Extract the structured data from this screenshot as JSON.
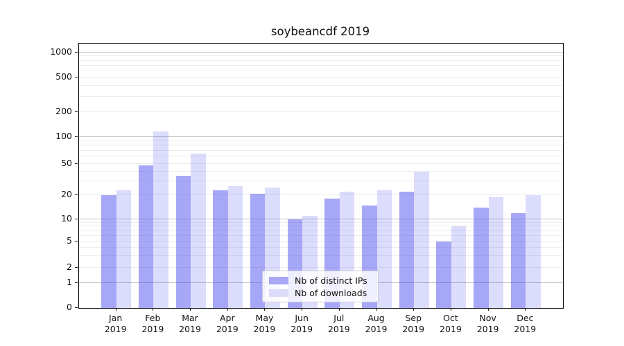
{
  "chart_data": {
    "type": "bar",
    "title": "soybeancdf 2019",
    "categories": [
      "Jan",
      "Feb",
      "Mar",
      "Apr",
      "May",
      "Jun",
      "Jul",
      "Aug",
      "Sep",
      "Oct",
      "Nov",
      "Dec"
    ],
    "category_year": "2019",
    "series": [
      {
        "name": "Nb of distinct IPs",
        "color": "rgba(80,80,240,0.5)",
        "solid_color": "#a8a8f6",
        "values": [
          20,
          48,
          35,
          23,
          21,
          10,
          18,
          15,
          22,
          5,
          14,
          12
        ]
      },
      {
        "name": "Nb of downloads",
        "color": "rgba(80,80,240,0.2)",
        "solid_color": "#dcdcfa",
        "values": [
          23,
          115,
          65,
          26,
          25,
          11,
          22,
          23,
          40,
          8,
          19,
          20
        ]
      }
    ],
    "xlabel": "",
    "ylabel": "",
    "yticks": [
      0,
      1,
      2,
      5,
      10,
      20,
      50,
      100,
      200,
      500,
      1000
    ],
    "ytick_labels": [
      "0",
      "1",
      "2",
      "5",
      "10",
      "20",
      "50",
      "100",
      "200",
      "500",
      "1000"
    ],
    "yscale": "log-above-1-linear-below",
    "ylim": [
      0,
      1400
    ],
    "grid": true,
    "legend_position": "lower-center-inside"
  },
  "colors": {
    "background": "#ffffff",
    "spine": "#000000",
    "grid_major": "#c3c3c3",
    "grid_minor": "#ededed",
    "text": "#111111",
    "legend_border": "#d0d0d0"
  }
}
